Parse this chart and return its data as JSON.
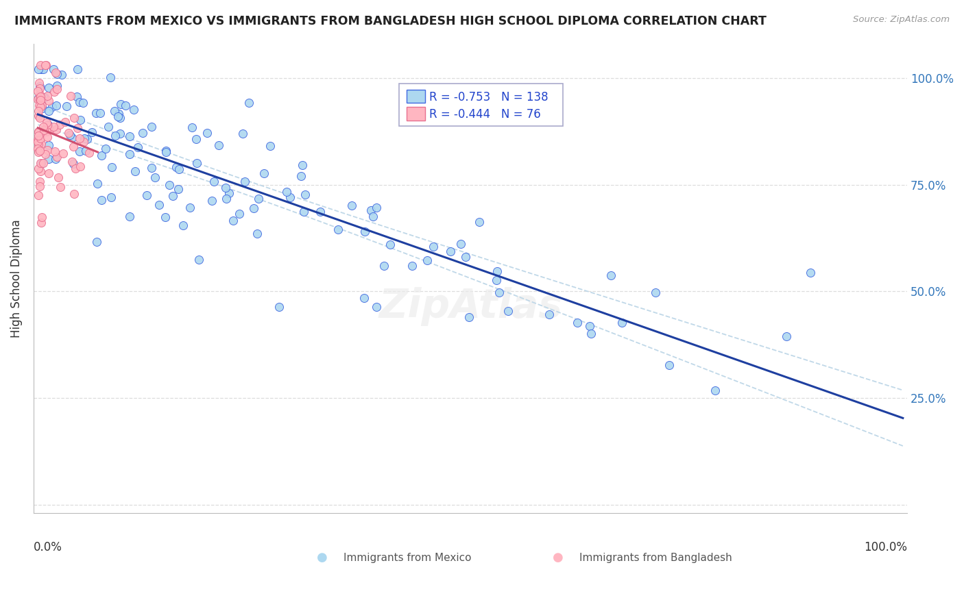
{
  "title": "IMMIGRANTS FROM MEXICO VS IMMIGRANTS FROM BANGLADESH HIGH SCHOOL DIPLOMA CORRELATION CHART",
  "source": "Source: ZipAtlas.com",
  "ylabel": "High School Diploma",
  "legend_mexico": "Immigrants from Mexico",
  "legend_bangladesh": "Immigrants from Bangladesh",
  "R_mexico": -0.753,
  "N_mexico": 138,
  "R_bangladesh": -0.444,
  "N_bangladesh": 76,
  "color_mexico_fill": "#ADD8F0",
  "color_mexico_edge": "#4169E1",
  "color_mexico_line": "#1E3FA0",
  "color_bangladesh_fill": "#FFB6C1",
  "color_bangladesh_edge": "#E87090",
  "color_bangladesh_line": "#D05070",
  "color_ci_dash": "#C0D8E8",
  "background_color": "#ffffff",
  "grid_color": "#DDDDDD",
  "yticks": [
    0.0,
    0.25,
    0.5,
    0.75,
    1.0
  ],
  "ytick_labels": [
    "",
    "25.0%",
    "50.0%",
    "75.0%",
    "100.0%"
  ]
}
